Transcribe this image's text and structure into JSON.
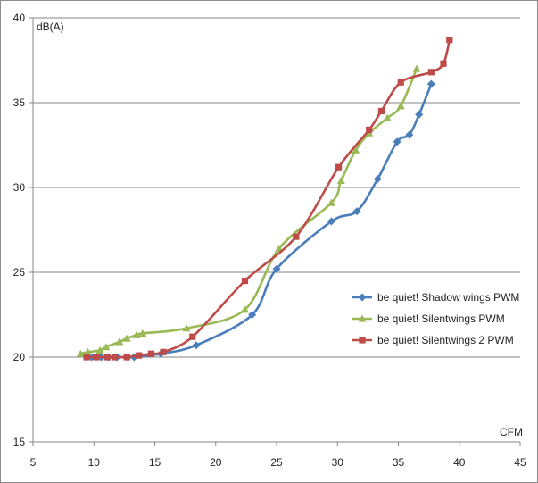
{
  "chart_data": {
    "type": "line",
    "ylabel": "dB(A)",
    "xlabel": "CFM",
    "xlim": [
      5,
      45
    ],
    "ylim": [
      15,
      40
    ],
    "xticks": [
      "5",
      "10",
      "15",
      "20",
      "25",
      "30",
      "35",
      "40",
      "45"
    ],
    "yticks": [
      "15",
      "20",
      "25",
      "30",
      "35",
      "40"
    ],
    "grid": "horizontal",
    "legend": "right",
    "series": [
      {
        "name": "be quiet! Shadow wings PWM",
        "color": "#4a7ebb",
        "marker": "diamond",
        "x": [
          9.8,
          10.6,
          11.2,
          11.9,
          12.8,
          13.3,
          15.5,
          18.4,
          23.0,
          25.0,
          29.5,
          31.6,
          33.3,
          34.9,
          35.9,
          36.7,
          37.7
        ],
        "y": [
          20.0,
          20.0,
          20.0,
          20.0,
          20.0,
          20.0,
          20.2,
          20.7,
          22.5,
          25.2,
          28.0,
          28.6,
          30.5,
          32.7,
          33.1,
          34.3,
          36.1
        ]
      },
      {
        "name": "be quiet! Silentwings PWM",
        "color": "#98b954",
        "marker": "triangle",
        "x": [
          8.9,
          9.5,
          10.5,
          11.0,
          12.1,
          12.7,
          13.5,
          14.0,
          17.6,
          22.4,
          25.2,
          29.5,
          30.3,
          31.5,
          32.6,
          34.1,
          35.2,
          36.5
        ],
        "y": [
          20.2,
          20.3,
          20.4,
          20.6,
          20.9,
          21.1,
          21.3,
          21.4,
          21.7,
          22.8,
          26.4,
          29.1,
          30.4,
          32.2,
          33.2,
          34.1,
          34.8,
          37.0
        ]
      },
      {
        "name": "be quiet! Silentwings 2 PWM",
        "color": "#be4b48",
        "marker": "square",
        "x": [
          9.4,
          10.2,
          11.1,
          11.7,
          12.7,
          13.7,
          14.7,
          15.7,
          18.1,
          22.4,
          26.6,
          30.1,
          32.6,
          33.6,
          35.2,
          37.7,
          38.7,
          39.2
        ],
        "y": [
          20.0,
          20.0,
          20.0,
          20.0,
          20.0,
          20.1,
          20.2,
          20.3,
          21.2,
          24.5,
          27.1,
          31.2,
          33.4,
          34.5,
          36.2,
          36.8,
          37.3,
          38.7
        ]
      }
    ]
  }
}
